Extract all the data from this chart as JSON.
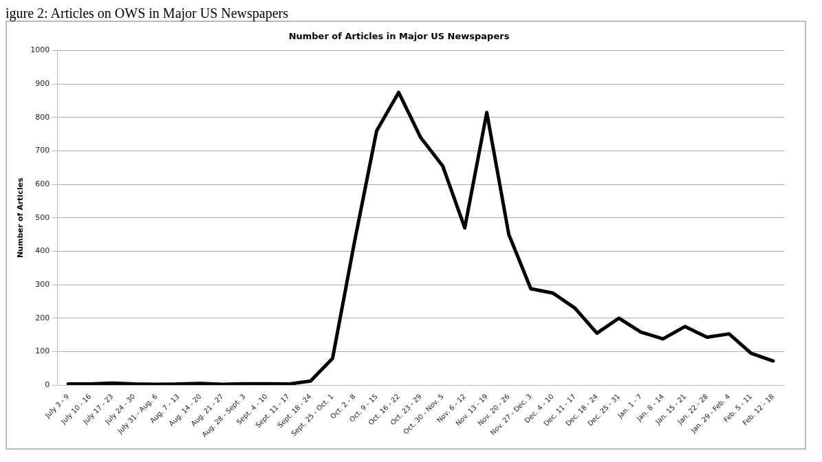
{
  "chart_data": {
    "type": "line",
    "title": "Number of Articles in Major US Newspapers",
    "ylabel": "Number of Articles",
    "annotations": [
      "igure 2: Articles on OWS in Major US Newspapers"
    ],
    "categories": [
      "July 3 - 9",
      "July 10 - 16",
      "July 17 - 23",
      "July 24 - 30",
      "July 31 - Aug. 6",
      "Aug. 7 - 13",
      "Aug. 14 - 20",
      "Aug. 21 - 27",
      "Aug. 28 - Sept. 3",
      "Sept. 4 - 10",
      "Sept. 11 - 17",
      "Sept. 18 - 24",
      "Sept. 25 - Oct. 1",
      "Oct. 2 - 8",
      "Oct. 9 - 15",
      "Oct. 16 - 22",
      "Oct. 23 - 29",
      "Oct. 30 - Nov. 5",
      "Nov. 6 - 12",
      "Nov. 13 - 19",
      "Nov. 20 - 26",
      "Nov. 27 - Dec. 3",
      "Dec. 4 - 10",
      "Dec. 11 - 17",
      "Dec. 18 - 24",
      "Dec. 25 - 31",
      "Jan. 1 - 7",
      "Jan. 8 - 14",
      "Jan. 15 - 21",
      "Jan. 22 - 28",
      "Jan. 29 - Feb. 4",
      "Feb. 5 - 11",
      "Feb. 12 - 18"
    ],
    "series": [
      {
        "color": "#000000",
        "values": [
          3,
          3,
          6,
          3,
          2,
          3,
          5,
          2,
          4,
          4,
          3,
          12,
          80,
          430,
          760,
          875,
          740,
          655,
          470,
          815,
          450,
          288,
          275,
          230,
          155,
          200,
          158,
          138,
          175,
          143,
          153,
          95,
          72
        ]
      }
    ],
    "ylim": [
      0,
      1000
    ],
    "yticks": [
      0,
      100,
      200,
      300,
      400,
      500,
      600,
      700,
      800,
      900,
      1000
    ],
    "grid": "y",
    "legend": false,
    "marker": "none",
    "line_style": "solid"
  }
}
